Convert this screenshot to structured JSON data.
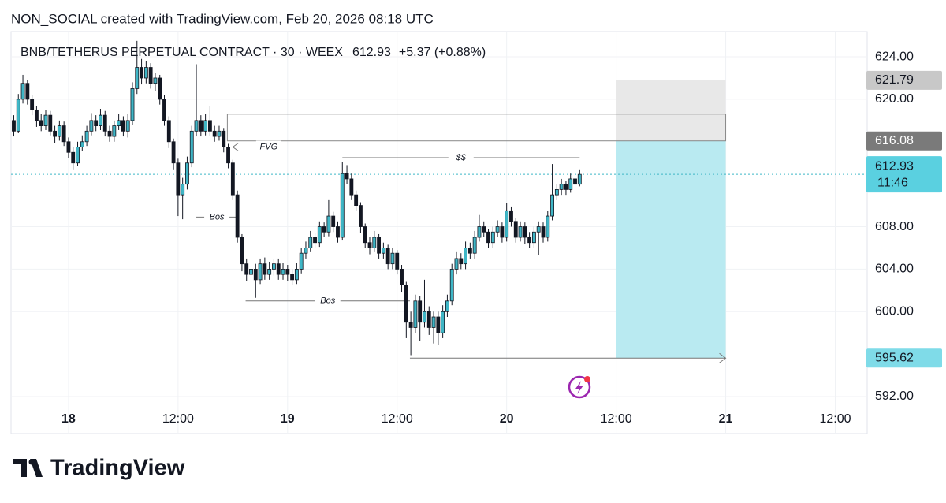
{
  "header": {
    "credit": "NON_SOCIAL created with TradingView.com, Feb 20, 2026 08:18 UTC",
    "brand": "TradingView"
  },
  "chart_data": {
    "type": "candlestick",
    "symbol": "BNB/TETHERUS PERPETUAL CONTRACT · 30 · WEEX",
    "last_price": 612.93,
    "change": "+5.37 (+0.88%)",
    "countdown": "11:46",
    "x": [
      -6,
      -5.5,
      -5,
      -4.5,
      -4,
      -3.5,
      -3,
      -2.5,
      -2,
      -1.5,
      -1,
      -0.5,
      0,
      0.5,
      1,
      1.5,
      2,
      2.5,
      3,
      3.5,
      4,
      4.5,
      5,
      5.5,
      6,
      6.5,
      7,
      7.5,
      8,
      8.5,
      9,
      9.5,
      10,
      10.5,
      11,
      11.5,
      12,
      12.5,
      13,
      13.5,
      14,
      14.5,
      15,
      15.5,
      16,
      16.5,
      17,
      17.5,
      18,
      18.5,
      19,
      19.5,
      20,
      20.5,
      21,
      21.5,
      22,
      22.5,
      23,
      23.5,
      24,
      24.5,
      25,
      25.5,
      26,
      26.5,
      27,
      27.5,
      28,
      28.5,
      29,
      29.5,
      30,
      30.5,
      31,
      31.5,
      32,
      32.5,
      33,
      33.5,
      34,
      34.5,
      35,
      35.5,
      36,
      36.5,
      37,
      37.5,
      38,
      38.5,
      39,
      39.5,
      40,
      40.5,
      41,
      41.5,
      42,
      42.5,
      43,
      43.5,
      44,
      44.5,
      45,
      45.5,
      46,
      46.5,
      47,
      47.5,
      48,
      48.5,
      49,
      49.5,
      50,
      50.5,
      51,
      51.5,
      52,
      52.5,
      53,
      53.5,
      54,
      54.5,
      55,
      55.5,
      56
    ],
    "candles": [
      [
        618,
        618.5,
        616.5,
        617
      ],
      [
        617,
        620.5,
        616.8,
        620
      ],
      [
        620,
        622.3,
        619.6,
        621.5
      ],
      [
        621.5,
        621.8,
        619.5,
        620
      ],
      [
        620,
        620.4,
        618.5,
        619
      ],
      [
        619,
        619.4,
        617.4,
        618
      ],
      [
        618,
        618.6,
        617,
        617.5
      ],
      [
        617.5,
        619,
        617.1,
        618.5
      ],
      [
        618.5,
        618.9,
        616.6,
        617
      ],
      [
        617,
        617.5,
        615.9,
        616.5
      ],
      [
        616.5,
        618,
        616.1,
        617.5
      ],
      [
        617.5,
        617.9,
        615.6,
        616
      ],
      [
        616,
        616.4,
        614.5,
        615
      ],
      [
        615,
        615.5,
        613.4,
        614
      ],
      [
        614,
        616,
        613.7,
        615.5
      ],
      [
        615.5,
        616.6,
        615.1,
        616
      ],
      [
        616,
        617.5,
        615.6,
        617
      ],
      [
        617,
        618.7,
        616.6,
        618
      ],
      [
        618,
        618.5,
        617,
        617.5
      ],
      [
        617.5,
        619.1,
        617.1,
        618.5
      ],
      [
        618.5,
        618.9,
        616.5,
        617
      ],
      [
        617,
        617.5,
        616,
        616.5
      ],
      [
        616.5,
        618,
        616,
        617.5
      ],
      [
        617.5,
        618.6,
        617.1,
        618
      ],
      [
        618,
        618.4,
        616.5,
        617
      ],
      [
        617,
        618.6,
        616.4,
        618
      ],
      [
        618,
        621.6,
        617.6,
        621
      ],
      [
        621,
        625.5,
        620.5,
        623
      ],
      [
        623,
        623.8,
        621.4,
        622
      ],
      [
        622,
        623.6,
        621.5,
        623
      ],
      [
        623,
        623.4,
        621,
        621.5
      ],
      [
        621.5,
        622.5,
        620.8,
        622
      ],
      [
        622,
        622.3,
        619.5,
        620
      ],
      [
        620,
        620.4,
        617.5,
        618
      ],
      [
        618,
        618.4,
        615.4,
        616
      ],
      [
        616,
        616.3,
        613.4,
        614
      ],
      [
        614,
        614.4,
        609,
        611
      ],
      [
        611,
        612.6,
        608.7,
        612
      ],
      [
        612,
        614.6,
        611.5,
        614
      ],
      [
        614,
        617.5,
        613.6,
        617
      ],
      [
        617,
        623.3,
        616.5,
        618
      ],
      [
        618,
        618.5,
        616.5,
        617
      ],
      [
        617,
        618.6,
        616.6,
        618
      ],
      [
        618,
        619.4,
        616.5,
        617
      ],
      [
        617,
        617.5,
        616,
        616.5
      ],
      [
        616.5,
        617.5,
        616.1,
        617
      ],
      [
        617,
        617.3,
        615,
        615.5
      ],
      [
        615.5,
        615.8,
        613.5,
        614
      ],
      [
        614,
        614.3,
        610.5,
        611
      ],
      [
        611,
        611.4,
        606.5,
        607
      ],
      [
        607,
        607.3,
        603.8,
        604.5
      ],
      [
        604.5,
        605,
        602.9,
        603.5
      ],
      [
        603.5,
        604.6,
        602.5,
        604
      ],
      [
        604,
        604.5,
        601.3,
        603
      ],
      [
        603,
        605,
        602.6,
        604.5
      ],
      [
        604.5,
        605.1,
        603,
        603.5
      ],
      [
        603.5,
        604.7,
        603,
        604
      ],
      [
        604,
        605,
        603.4,
        604.5
      ],
      [
        604.5,
        605,
        603,
        603.5
      ],
      [
        603.5,
        604.6,
        603,
        604
      ],
      [
        604,
        604.4,
        602.9,
        603.5
      ],
      [
        603.5,
        604,
        602.5,
        603
      ],
      [
        603,
        604.6,
        602.6,
        604
      ],
      [
        604,
        606,
        603.6,
        605.5
      ],
      [
        605.5,
        606.6,
        605,
        606
      ],
      [
        606,
        607.6,
        605.6,
        607
      ],
      [
        607,
        607.4,
        606,
        606.5
      ],
      [
        606.5,
        608.5,
        606.1,
        608
      ],
      [
        608,
        608.4,
        607,
        607.5
      ],
      [
        607.5,
        610.5,
        607.1,
        609
      ],
      [
        609,
        609.4,
        607.5,
        608
      ],
      [
        608,
        608.5,
        606.5,
        607
      ],
      [
        607,
        614.1,
        606.7,
        613
      ],
      [
        613,
        613.8,
        612,
        612.5
      ],
      [
        612.5,
        613,
        610.5,
        611
      ],
      [
        611,
        611.4,
        609.5,
        610
      ],
      [
        610,
        610.3,
        607.4,
        608
      ],
      [
        608,
        608.3,
        606,
        606.5
      ],
      [
        606.5,
        607,
        605.4,
        606
      ],
      [
        606,
        607.6,
        605.6,
        607
      ],
      [
        607,
        607.3,
        605,
        605.5
      ],
      [
        605.5,
        606.5,
        605,
        606
      ],
      [
        606,
        606.3,
        604,
        604.5
      ],
      [
        604.5,
        606,
        604,
        605.5
      ],
      [
        605.5,
        605.8,
        603.5,
        604
      ],
      [
        604,
        604.4,
        601.8,
        602.5
      ],
      [
        602.5,
        602.8,
        597.5,
        599
      ],
      [
        599,
        600,
        595.9,
        598.5
      ],
      [
        598.5,
        601.6,
        598,
        601
      ],
      [
        601,
        601.5,
        597.2,
        599
      ],
      [
        599,
        603,
        598.5,
        600
      ],
      [
        600,
        600.5,
        597.8,
        598.5
      ],
      [
        598.5,
        600,
        597,
        599.5
      ],
      [
        599.5,
        600,
        596.9,
        598
      ],
      [
        598,
        600.6,
        597.5,
        600
      ],
      [
        600,
        601.6,
        599.5,
        601
      ],
      [
        601,
        604.5,
        600.6,
        604
      ],
      [
        604,
        605.6,
        603.5,
        605
      ],
      [
        605,
        605.5,
        604,
        604.5
      ],
      [
        604.5,
        606.6,
        604,
        606
      ],
      [
        606,
        606.5,
        605,
        605.5
      ],
      [
        605.5,
        607.6,
        605,
        607
      ],
      [
        607,
        609.1,
        606.6,
        608
      ],
      [
        608,
        608.5,
        607,
        607.5
      ],
      [
        607.5,
        607.8,
        606,
        606.5
      ],
      [
        606.5,
        608,
        606,
        607.5
      ],
      [
        607.5,
        608.6,
        607,
        608
      ],
      [
        608,
        608.4,
        606.5,
        607
      ],
      [
        607,
        610.2,
        606.6,
        609.5
      ],
      [
        609.5,
        609.9,
        608,
        608.5
      ],
      [
        608.5,
        608.8,
        606.5,
        607
      ],
      [
        607,
        608.5,
        606.6,
        608
      ],
      [
        608,
        608.4,
        606.4,
        607
      ],
      [
        607,
        607.5,
        606,
        606.5
      ],
      [
        606.5,
        608,
        606,
        607.5
      ],
      [
        607.5,
        608.5,
        605.3,
        608
      ],
      [
        608,
        608.4,
        606.5,
        607
      ],
      [
        607,
        609.5,
        606.6,
        609
      ],
      [
        609,
        613.9,
        608.6,
        611
      ],
      [
        611,
        612,
        610.5,
        611.5
      ],
      [
        611.5,
        612.5,
        611,
        612
      ],
      [
        612,
        612.3,
        611,
        611.5
      ],
      [
        611.5,
        613,
        611.2,
        612.5
      ],
      [
        612.5,
        612.8,
        611.5,
        612
      ],
      [
        612,
        613.4,
        611.8,
        612.93
      ]
    ],
    "up_color": "#3fb6c6",
    "down_color": "#131722",
    "xlim": [
      -6.3,
      87.5
    ],
    "xticks": [
      {
        "value": 0,
        "label": "18"
      },
      {
        "value": 12,
        "label": "12:00"
      },
      {
        "value": 24,
        "label": "19"
      },
      {
        "value": 36,
        "label": "12:00"
      },
      {
        "value": 48,
        "label": "20"
      },
      {
        "value": 60,
        "label": "12:00"
      },
      {
        "value": 72,
        "label": "21"
      },
      {
        "value": 84,
        "label": "12:00"
      }
    ],
    "ylim": [
      591.11,
      626.38
    ],
    "yticks": [
      {
        "value": 592,
        "label": "592.00"
      },
      {
        "value": 600,
        "label": "600.00"
      },
      {
        "value": 604,
        "label": "604.00"
      },
      {
        "value": 608,
        "label": "608.00"
      },
      {
        "value": 620,
        "label": "620.00"
      },
      {
        "value": 624,
        "label": "624.00"
      }
    ],
    "grid": true,
    "position": {
      "from": 60,
      "to": 72,
      "entry": 616.08,
      "stop": 621.79,
      "target": 595.62,
      "target_from": 37.4,
      "stop_color": "#e8e8e8",
      "target_color": "#b9eaf1"
    },
    "fvg_zone": {
      "from": 17.4,
      "to": 72,
      "low": 616.08,
      "high": 618.6
    },
    "annotations": [
      {
        "text": "FVG",
        "from": 18,
        "to": 21.5,
        "price": 615.5
      },
      {
        "text": "$$",
        "from": 30,
        "to": 56,
        "price": 614.5
      },
      {
        "text": "Bos",
        "from": 14,
        "to": 18.5,
        "price": 608.9
      },
      {
        "text": "Bos",
        "from": 19.4,
        "to": 37.4,
        "price": 601
      }
    ]
  }
}
